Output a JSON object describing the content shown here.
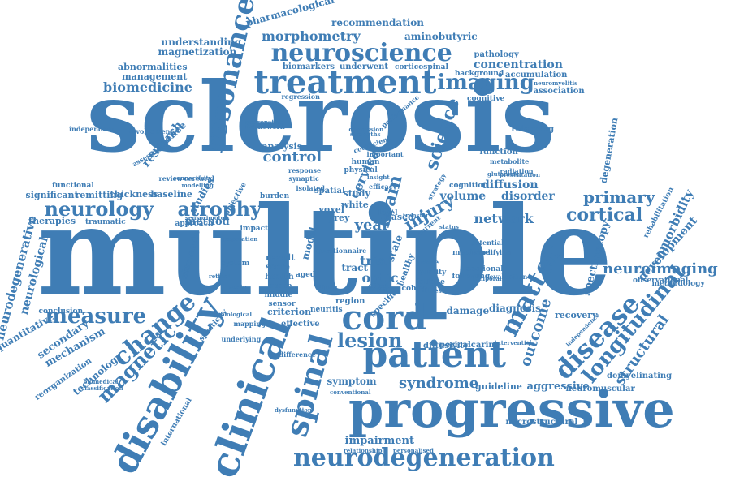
{
  "colors": {
    "text": "#3f7db5",
    "background": "#ffffff"
  },
  "words": [
    "sclerosis",
    "multiple",
    "progressive",
    "patient",
    "clinical",
    "disability",
    "spinal",
    "neurodegeneration",
    "treatment",
    "neuroscience",
    "neurology",
    "atrophy",
    "resonance",
    "cord",
    "imaging",
    "disease",
    "matter",
    "change",
    "measure",
    "magnetic",
    "longitudinal",
    "lesion",
    "cortical",
    "primary",
    "neuroimaging",
    "structural",
    "syndrome",
    "outcome",
    "control",
    "science",
    "brain",
    "injury",
    "network",
    "cervical",
    "year",
    "trial",
    "optic",
    "morphometry",
    "recommendation",
    "aminobutyric",
    "pharmacological",
    "concentration",
    "biomedicine",
    "understanding",
    "magnetization",
    "abnormalities",
    "management",
    "biomarkers",
    "underwent",
    "corticospinal",
    "pathology",
    "accumulation",
    "background",
    "association",
    "neuromyelitis",
    "cognitive",
    "regression",
    "relapsing",
    "degeneration",
    "function",
    "metabolite",
    "radiation",
    "diffusion",
    "volume",
    "disorder",
    "cognition",
    "comorbidity",
    "development",
    "rehabilitation",
    "spectroscopy",
    "methodology",
    "observational",
    "demyelinating",
    "neuromuscular",
    "aggressive",
    "guideline",
    "microstructural",
    "impairment",
    "relationship",
    "personalised",
    "symptom",
    "conventional",
    "dysfunction",
    "international",
    "neurodegenerative",
    "neurological",
    "quantitative",
    "secondary",
    "mechanism",
    "technology",
    "reorganization",
    "biomedical",
    "classification",
    "conclusion",
    "significant",
    "remitting",
    "therapies",
    "traumatic",
    "functional",
    "thickness",
    "baseline",
    "studies",
    "method",
    "research",
    "evidence",
    "assessment",
    "involvement",
    "independent",
    "analysis",
    "physical",
    "human",
    "spatial",
    "study",
    "white",
    "based",
    "grey",
    "model",
    "tract",
    "region",
    "time",
    "lower",
    "effect",
    "specific",
    "criterion",
    "effective",
    "neuritis",
    "difference",
    "spasticity",
    "diagnosis",
    "damage",
    "recovery",
    "pericalcarine",
    "diffusivity",
    "sectional",
    "cohort",
    "healthy",
    "scale",
    "level",
    "voxel",
    "result",
    "score",
    "health",
    "space",
    "middle",
    "sensor",
    "aged",
    "system",
    "approach",
    "impact",
    "burden",
    "objective",
    "mapping",
    "underlying",
    "intervention",
    "independence",
    "quality",
    "following",
    "evaluation",
    "fatigue",
    "illness",
    "temporal",
    "tissue",
    "medicine",
    "potential",
    "modifying",
    "presentation",
    "glutamate",
    "insight",
    "efficacy",
    "strategy",
    "current",
    "transfer",
    "status",
    "performance",
    "depression",
    "framework",
    "neuropathic",
    "strengths",
    "coefficient",
    "response",
    "synaptic",
    "isolated",
    "review",
    "cerebral",
    "dementia",
    "connectivity",
    "modelling",
    "population",
    "questionnaire",
    "gait",
    "sensorimotor",
    "retinal",
    "acute",
    "biological",
    "important",
    "relevance"
  ]
}
